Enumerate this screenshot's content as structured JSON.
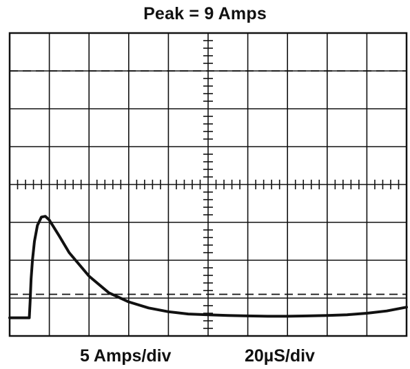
{
  "title": "Peak = 9 Amps",
  "vertical_scale_label": "5 Amps/div",
  "horizontal_scale_label": "20µS/div",
  "chart_data": {
    "type": "line",
    "title": "Peak = 9 Amps",
    "xlabel": "20µS/div",
    "ylabel": "5 Amps/div",
    "grid": true,
    "x_divisions": 10,
    "y_divisions": 8,
    "x_units_per_div": 20,
    "y_units_per_div": 5,
    "xlim": [
      0,
      200
    ],
    "ylim": [
      -20,
      20
    ],
    "reference_levels": [
      15,
      -14.5
    ],
    "series": [
      {
        "x": [
          0,
          9.9,
          10.3,
          10.8,
          11.5,
          12.5,
          14,
          16,
          18,
          20,
          25,
          30,
          40,
          50,
          60,
          70,
          80,
          90,
          100,
          110,
          120,
          130,
          140,
          150,
          160,
          170,
          180,
          190,
          200
        ],
        "y": [
          -17.6,
          -17.6,
          -15.5,
          -12.5,
          -10,
          -7.5,
          -5.4,
          -4.3,
          -4.2,
          -4.7,
          -6.8,
          -9,
          -12.1,
          -14.3,
          -15.5,
          -16.3,
          -16.8,
          -17.1,
          -17.2,
          -17.3,
          -17.35,
          -17.4,
          -17.4,
          -17.35,
          -17.3,
          -17.2,
          -17,
          -16.7,
          -16.2
        ]
      }
    ]
  }
}
